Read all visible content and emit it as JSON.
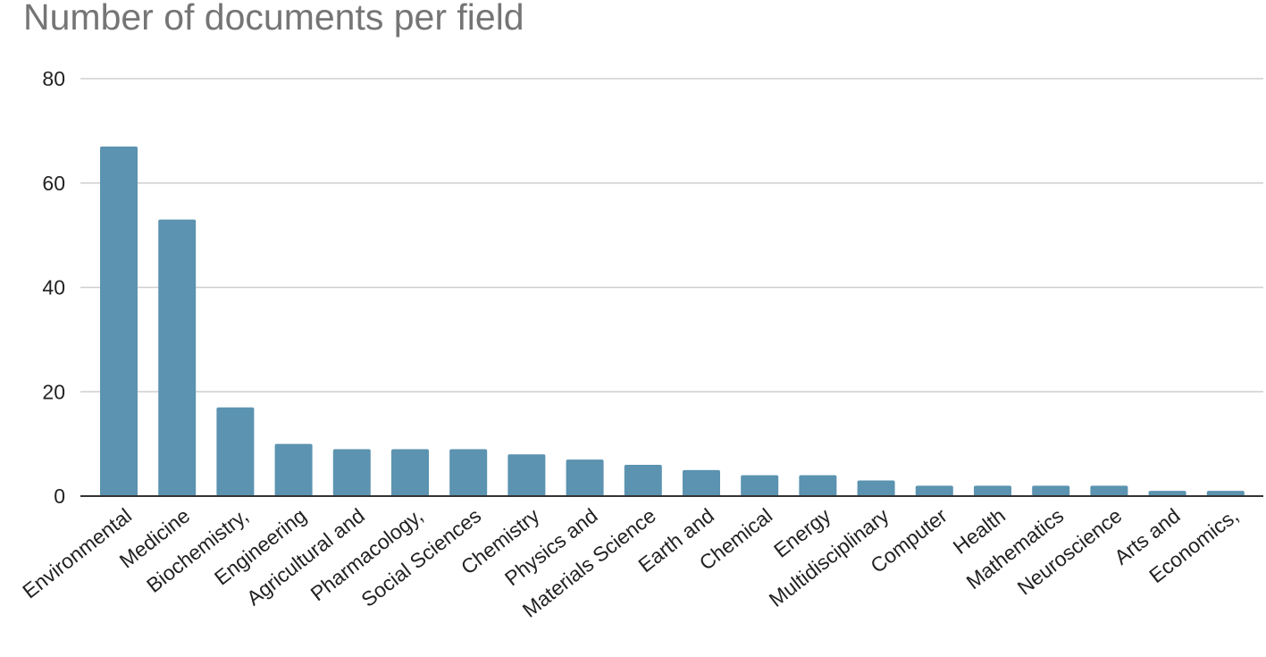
{
  "chart_data": {
    "type": "bar",
    "title": "Number of documents per field",
    "xlabel": "",
    "ylabel": "",
    "ylim": [
      0,
      80
    ],
    "yticks": [
      0,
      20,
      40,
      60,
      80
    ],
    "grid": true,
    "bar_color": "#5b93b0",
    "categories": [
      "Environmental",
      "Medicine",
      "Biochemistry,",
      "Engineering",
      "Agricultural and",
      "Pharmacology,",
      "Social Sciences",
      "Chemistry",
      "Physics and",
      "Materials Science",
      "Earth and",
      "Chemical",
      "Energy",
      "Multidisciplinary",
      "Computer",
      "Health",
      "Mathematics",
      "Neuroscience",
      "Arts and",
      "Economics,"
    ],
    "values": [
      67,
      53,
      17,
      10,
      9,
      9,
      9,
      8,
      7,
      6,
      5,
      4,
      4,
      3,
      2,
      2,
      2,
      2,
      1,
      1
    ]
  }
}
